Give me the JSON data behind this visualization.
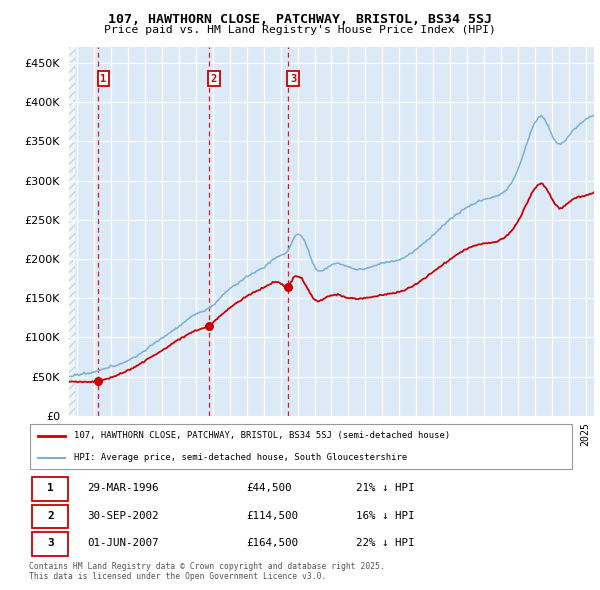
{
  "title1": "107, HAWTHORN CLOSE, PATCHWAY, BRISTOL, BS34 5SJ",
  "title2": "Price paid vs. HM Land Registry's House Price Index (HPI)",
  "background_color": "#dce9f7",
  "hpi_color": "#7aafd4",
  "price_color": "#cc0000",
  "sales": [
    {
      "date_num": 1996.24,
      "price": 44500,
      "label": "1"
    },
    {
      "date_num": 2002.75,
      "price": 114500,
      "label": "2"
    },
    {
      "date_num": 2007.42,
      "price": 164500,
      "label": "3"
    }
  ],
  "sale_dates_str": [
    "29-MAR-1996",
    "30-SEP-2002",
    "01-JUN-2007"
  ],
  "sale_prices_str": [
    "£44,500",
    "£114,500",
    "£164,500"
  ],
  "sale_hpi_pct": [
    "21% ↓ HPI",
    "16% ↓ HPI",
    "22% ↓ HPI"
  ],
  "legend_line1": "107, HAWTHORN CLOSE, PATCHWAY, BRISTOL, BS34 5SJ (semi-detached house)",
  "legend_line2": "HPI: Average price, semi-detached house, South Gloucestershire",
  "footnote": "Contains HM Land Registry data © Crown copyright and database right 2025.\nThis data is licensed under the Open Government Licence v3.0.",
  "ylim": [
    0,
    470000
  ],
  "xlim_start": 1994.5,
  "xlim_end": 2025.5
}
